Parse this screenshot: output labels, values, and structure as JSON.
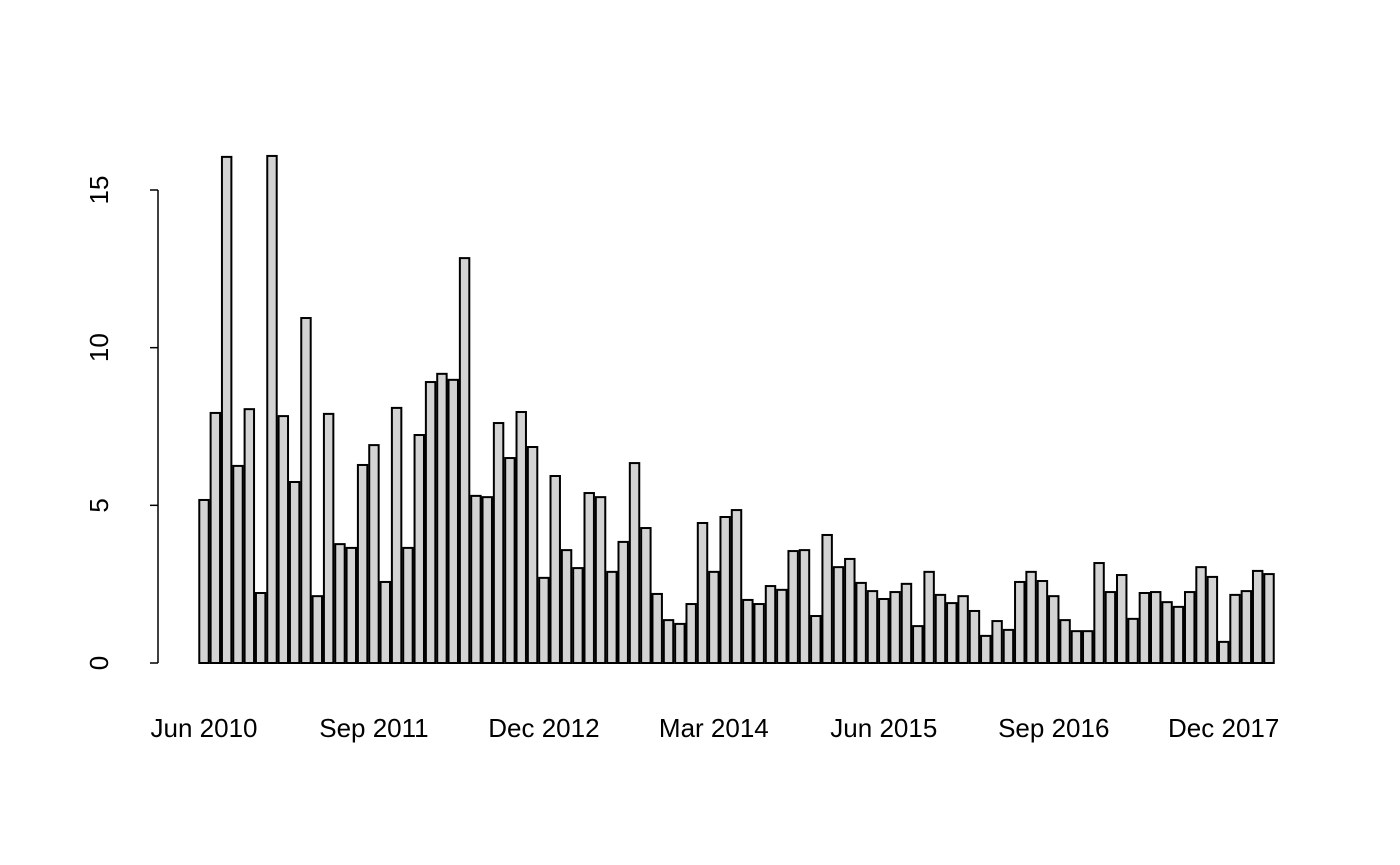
{
  "chart_data": {
    "type": "bar",
    "categories": [
      "Jun 2010",
      null,
      null,
      null,
      null,
      null,
      null,
      null,
      null,
      null,
      null,
      null,
      null,
      null,
      null,
      "Sep 2011",
      null,
      null,
      null,
      null,
      null,
      null,
      null,
      null,
      null,
      null,
      null,
      null,
      null,
      null,
      "Dec 2012",
      null,
      null,
      null,
      null,
      null,
      null,
      null,
      null,
      null,
      null,
      null,
      null,
      null,
      null,
      "Mar 2014",
      null,
      null,
      null,
      null,
      null,
      null,
      null,
      null,
      null,
      null,
      null,
      null,
      null,
      null,
      "Jun 2015",
      null,
      null,
      null,
      null,
      null,
      null,
      null,
      null,
      null,
      null,
      null,
      null,
      null,
      null,
      "Sep 2016",
      null,
      null,
      null,
      null,
      null,
      null,
      null,
      null,
      null,
      null,
      null,
      null,
      null,
      null,
      "Dec 2017",
      null,
      null,
      null,
      null
    ],
    "values": [
      5.17,
      7.93,
      16.05,
      6.25,
      8.05,
      2.22,
      16.08,
      7.83,
      5.74,
      10.94,
      2.12,
      7.9,
      3.77,
      3.65,
      6.28,
      6.91,
      2.57,
      8.09,
      3.65,
      7.23,
      8.91,
      9.17,
      8.98,
      12.84,
      5.3,
      5.26,
      7.61,
      6.5,
      7.96,
      6.85,
      2.7,
      5.93,
      3.58,
      3.01,
      5.39,
      5.26,
      2.89,
      3.84,
      6.34,
      4.28,
      2.19,
      1.36,
      1.24,
      1.87,
      4.44,
      2.89,
      4.63,
      4.85,
      2.0,
      1.87,
      2.44,
      2.32,
      3.55,
      3.58,
      1.49,
      4.06,
      3.04,
      3.3,
      2.54,
      2.28,
      2.03,
      2.25,
      2.51,
      1.17,
      2.89,
      2.16,
      1.9,
      2.12,
      1.65,
      0.86,
      1.33,
      1.05,
      2.57,
      2.89,
      2.6,
      2.12,
      1.36,
      1.01,
      1.01,
      3.17,
      2.25,
      2.79,
      1.4,
      2.22,
      2.25,
      1.93,
      1.78,
      2.25,
      3.04,
      2.73,
      0.67,
      2.16,
      2.28,
      2.92,
      2.82
    ],
    "color": "#d3d3d3",
    "ylim": [
      0,
      15
    ],
    "yticks": [
      0,
      5,
      10,
      15
    ]
  }
}
